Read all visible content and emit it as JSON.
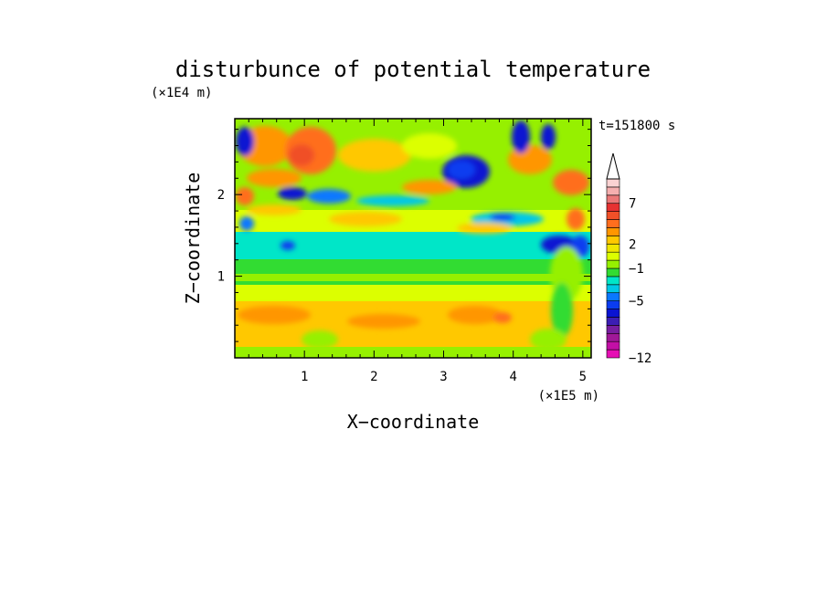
{
  "chart_data": {
    "type": "heatmap",
    "title": "disturbunce of potential temperature",
    "xlabel": "X−coordinate",
    "ylabel": "Z−coordinate",
    "x_unit": "(×1E5 m)",
    "y_unit": "(×1E4 m)",
    "time_label": "t=151800 s",
    "xlim": [
      0,
      5.12
    ],
    "ylim": [
      0,
      2.93
    ],
    "xticks": [
      1,
      2,
      3,
      4,
      5
    ],
    "yticks": [
      1,
      2
    ],
    "colorbar": {
      "levels": [
        -12,
        -11,
        -10,
        -9,
        -8,
        -7,
        -6,
        -5,
        -4,
        -3,
        -2,
        -1,
        0,
        1,
        2,
        3,
        4,
        5,
        6,
        7,
        8,
        9,
        10
      ],
      "labeled_ticks": [
        -12,
        -5,
        -1,
        2,
        7
      ],
      "labels": [
        "−12",
        "−5",
        "−1",
        "2",
        "7"
      ],
      "extend": "max",
      "colors": [
        "#e60fb4",
        "#c30fa6",
        "#a01898",
        "#781ea0",
        "#3c1eb4",
        "#0a14d2",
        "#0a3cf0",
        "#0a78ff",
        "#00c8e6",
        "#00e6c8",
        "#32dc32",
        "#96f000",
        "#dcff00",
        "#f0e600",
        "#ffc800",
        "#ff9600",
        "#ff6e1e",
        "#f05028",
        "#e63232",
        "#eb7878",
        "#f5afaf",
        "#fad2d2"
      ]
    },
    "bands": [
      {
        "z_range": [
          0.0,
          0.1
        ],
        "dominant": "green"
      },
      {
        "z_range": [
          0.1,
          0.8
        ],
        "dominant": "yellow-orange"
      },
      {
        "z_range": [
          0.8,
          1.05
        ],
        "dominant": "yellow-green"
      },
      {
        "z_range": [
          1.05,
          1.5
        ],
        "dominant": "green-cyan"
      },
      {
        "z_range": [
          1.5,
          2.0
        ],
        "dominant": "yellow"
      },
      {
        "z_range": [
          2.0,
          2.93
        ],
        "dominant": "orange-green-blue"
      }
    ]
  }
}
